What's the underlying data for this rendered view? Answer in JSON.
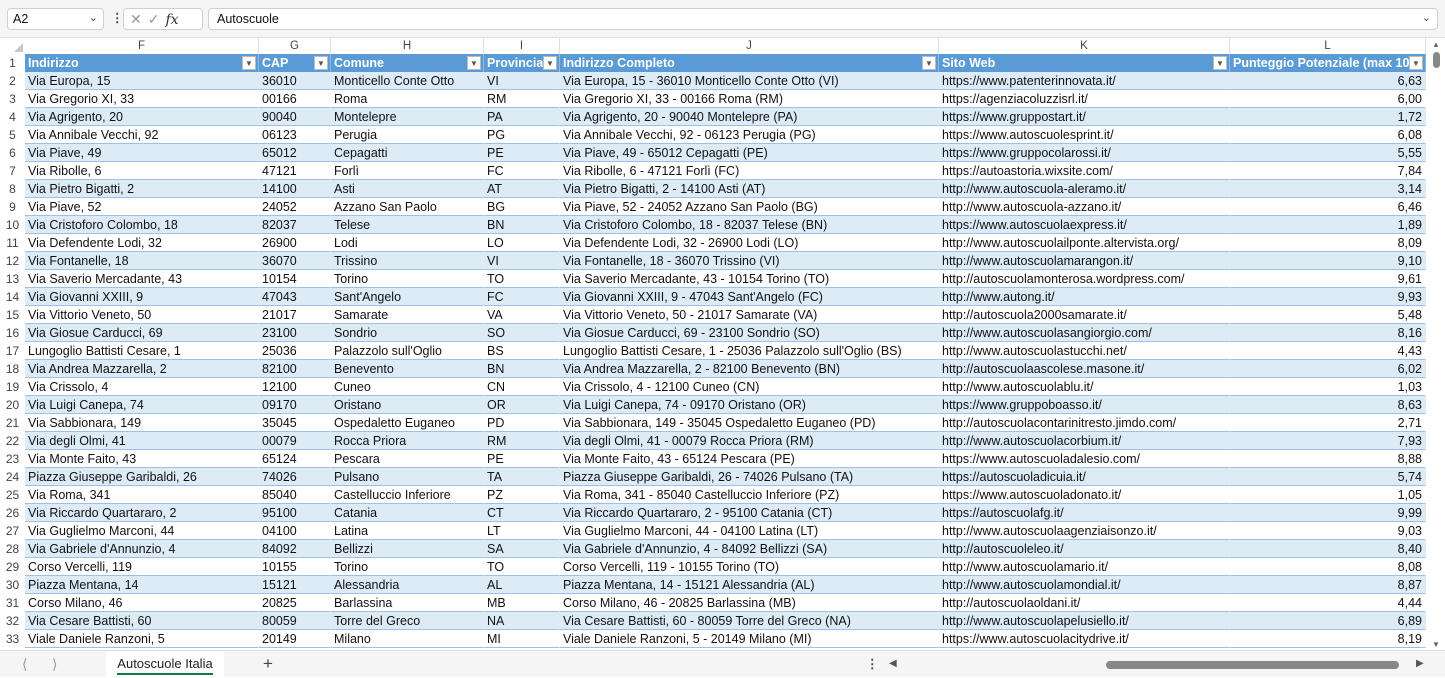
{
  "toolbar": {
    "name_box": "A2",
    "formula": "Autoscuole",
    "fx_label": "fx"
  },
  "columns": [
    "F",
    "G",
    "H",
    "I",
    "J",
    "K",
    "L"
  ],
  "headers": [
    "Indirizzo",
    "CAP",
    "Comune",
    "Provincia",
    "Indirizzo Completo",
    "Sito Web",
    "Punteggio Potenziale (max 10)"
  ],
  "rows": [
    [
      "Via Europa, 15",
      "36010",
      "Monticello Conte Otto",
      "VI",
      "Via Europa, 15 - 36010 Monticello Conte Otto (VI)",
      "https://www.patenterinnovata.it/",
      "6,63"
    ],
    [
      "Via Gregorio XI, 33",
      "00166",
      "Roma",
      "RM",
      "Via Gregorio XI, 33 - 00166 Roma (RM)",
      "https://agenziacoluzzisrl.it/",
      "6,00"
    ],
    [
      "Via Agrigento, 20",
      "90040",
      "Montelepre",
      "PA",
      "Via Agrigento, 20 - 90040 Montelepre (PA)",
      "https://www.gruppostart.it/",
      "1,72"
    ],
    [
      "Via Annibale Vecchi, 92",
      "06123",
      "Perugia",
      "PG",
      "Via Annibale Vecchi, 92 - 06123 Perugia (PG)",
      "https://www.autoscuolesprint.it/",
      "6,08"
    ],
    [
      "Via Piave, 49",
      "65012",
      "Cepagatti",
      "PE",
      "Via Piave, 49 - 65012 Cepagatti (PE)",
      "https://www.gruppocolarossi.it/",
      "5,55"
    ],
    [
      "Via Ribolle, 6",
      "47121",
      "Forlì",
      "FC",
      "Via Ribolle, 6 - 47121 Forlì (FC)",
      "https://autoastoria.wixsite.com/",
      "7,84"
    ],
    [
      "Via Pietro Bigatti, 2",
      "14100",
      "Asti",
      "AT",
      "Via Pietro Bigatti, 2 - 14100 Asti (AT)",
      "http://www.autoscuola-aleramo.it/",
      "3,14"
    ],
    [
      "Via Piave, 52",
      "24052",
      "Azzano San Paolo",
      "BG",
      "Via Piave, 52 - 24052 Azzano San Paolo (BG)",
      "http://www.autoscuola-azzano.it/",
      "6,46"
    ],
    [
      "Via Cristoforo Colombo, 18",
      "82037",
      "Telese",
      "BN",
      "Via Cristoforo Colombo, 18 - 82037 Telese (BN)",
      "https://www.autoscuolaexpress.it/",
      "1,89"
    ],
    [
      "Via Defendente Lodi, 32",
      "26900",
      "Lodi",
      "LO",
      "Via Defendente Lodi, 32 - 26900 Lodi (LO)",
      "http://www.autoscuolailponte.altervista.org/",
      "8,09"
    ],
    [
      "Via Fontanelle, 18",
      "36070",
      "Trissino",
      "VI",
      "Via Fontanelle, 18 - 36070 Trissino (VI)",
      "http://www.autoscuolamarangon.it/",
      "9,10"
    ],
    [
      "Via Saverio Mercadante, 43",
      "10154",
      "Torino",
      "TO",
      "Via Saverio Mercadante, 43 - 10154 Torino (TO)",
      "http://autoscuolamonterosa.wordpress.com/",
      "9,61"
    ],
    [
      "Via Giovanni XXIII, 9",
      "47043",
      "Sant'Angelo",
      "FC",
      "Via Giovanni XXIII, 9 - 47043 Sant'Angelo (FC)",
      "http://www.autong.it/",
      "9,93"
    ],
    [
      "Via Vittorio Veneto, 50",
      "21017",
      "Samarate",
      "VA",
      "Via Vittorio Veneto, 50 - 21017 Samarate (VA)",
      "http://autoscuola2000samarate.it/",
      "5,48"
    ],
    [
      "Via Giosue Carducci, 69",
      "23100",
      "Sondrio",
      "SO",
      "Via Giosue Carducci, 69 - 23100 Sondrio (SO)",
      "http://www.autoscuolasangiorgio.com/",
      "8,16"
    ],
    [
      "Lungoglio Battisti Cesare, 1",
      "25036",
      "Palazzolo sull'Oglio",
      "BS",
      "Lungoglio Battisti Cesare, 1 - 25036 Palazzolo sull'Oglio (BS)",
      "http://www.autoscuolastucchi.net/",
      "4,43"
    ],
    [
      "Via Andrea Mazzarella, 2",
      "82100",
      "Benevento",
      "BN",
      "Via Andrea Mazzarella, 2 - 82100 Benevento (BN)",
      "http://autoscuolaascolese.masone.it/",
      "6,02"
    ],
    [
      "Via Crissolo, 4",
      "12100",
      "Cuneo",
      "CN",
      "Via Crissolo, 4 - 12100 Cuneo (CN)",
      "http://www.autoscuolablu.it/",
      "1,03"
    ],
    [
      "Via Luigi Canepa, 74",
      "09170",
      "Oristano",
      "OR",
      "Via Luigi Canepa, 74 - 09170 Oristano (OR)",
      "https://www.gruppoboasso.it/",
      "8,63"
    ],
    [
      "Via Sabbionara, 149",
      "35045",
      "Ospedaletto Euganeo",
      "PD",
      "Via Sabbionara, 149 - 35045 Ospedaletto Euganeo (PD)",
      "http://autoscuolacontarinitresto.jimdo.com/",
      "2,71"
    ],
    [
      "Via degli Olmi, 41",
      "00079",
      "Rocca Priora",
      "RM",
      "Via degli Olmi, 41 - 00079 Rocca Priora (RM)",
      "http://www.autoscuolacorbium.it/",
      "7,93"
    ],
    [
      "Via Monte Faito, 43",
      "65124",
      "Pescara",
      "PE",
      "Via Monte Faito, 43 - 65124 Pescara (PE)",
      "https://www.autoscuoladalesio.com/",
      "8,88"
    ],
    [
      "Piazza Giuseppe Garibaldi, 26",
      "74026",
      "Pulsano",
      "TA",
      "Piazza Giuseppe Garibaldi, 26 - 74026 Pulsano (TA)",
      "https://autoscuoladicuia.it/",
      "5,74"
    ],
    [
      "Via Roma, 341",
      "85040",
      "Castelluccio Inferiore",
      "PZ",
      "Via Roma, 341 - 85040 Castelluccio Inferiore (PZ)",
      "https://www.autoscuoladonato.it/",
      "1,05"
    ],
    [
      "Via Riccardo Quartararo, 2",
      "95100",
      "Catania",
      "CT",
      "Via Riccardo Quartararo, 2 - 95100 Catania (CT)",
      "https://autoscuolafg.it/",
      "9,99"
    ],
    [
      "Via Guglielmo Marconi, 44",
      "04100",
      "Latina",
      "LT",
      "Via Guglielmo Marconi, 44 - 04100 Latina (LT)",
      "http://www.autoscuolaagenziaisonzo.it/",
      "9,03"
    ],
    [
      "Via Gabriele d'Annunzio, 4",
      "84092",
      "Bellizzi",
      "SA",
      "Via Gabriele d'Annunzio, 4 - 84092 Bellizzi (SA)",
      "http://autoscuoleleo.it/",
      "8,40"
    ],
    [
      "Corso Vercelli, 119",
      "10155",
      "Torino",
      "TO",
      "Corso Vercelli, 119 - 10155 Torino (TO)",
      "http://www.autoscuolamario.it/",
      "8,08"
    ],
    [
      "Piazza Mentana, 14",
      "15121",
      "Alessandria",
      "AL",
      "Piazza Mentana, 14 - 15121 Alessandria (AL)",
      "http://www.autoscuolamondial.it/",
      "8,87"
    ],
    [
      "Corso Milano, 46",
      "20825",
      "Barlassina",
      "MB",
      "Corso Milano, 46 - 20825 Barlassina (MB)",
      "http://autoscuolaoldani.it/",
      "4,44"
    ],
    [
      "Via Cesare Battisti, 60",
      "80059",
      "Torre del Greco",
      "NA",
      "Via Cesare Battisti, 60 - 80059 Torre del Greco (NA)",
      "http://www.autoscuolapelusiello.it/",
      "6,89"
    ],
    [
      "Viale Daniele Ranzoni, 5",
      "20149",
      "Milano",
      "MI",
      "Viale Daniele Ranzoni, 5 - 20149 Milano (MI)",
      "https://www.autoscuolacitydrive.it/",
      "8,19"
    ]
  ],
  "sheet_tab": "Autoscuole Italia",
  "colors": {
    "header_bg": "#5b9bd5",
    "band": "#ddebf7",
    "active_tab": "#107c41"
  }
}
